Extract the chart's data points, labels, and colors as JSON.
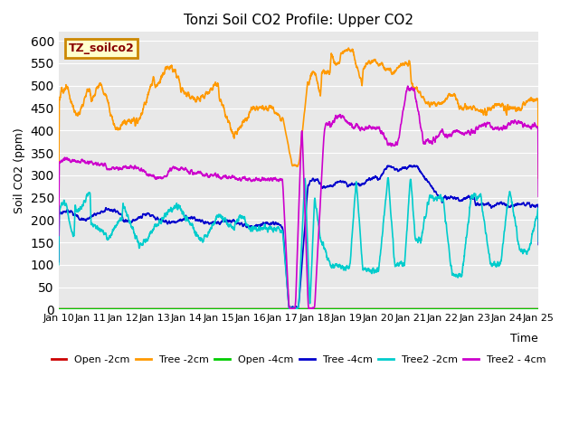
{
  "title": "Tonzi Soil CO2 Profile: Upper CO2",
  "ylabel": "Soil CO2 (ppm)",
  "xlabel": "Time",
  "ylim": [
    0,
    620
  ],
  "yticks": [
    0,
    50,
    100,
    150,
    200,
    250,
    300,
    350,
    400,
    450,
    500,
    550,
    600
  ],
  "xtick_labels": [
    "Jan 10",
    "Jan 11",
    "Jan 12",
    "Jan 13",
    "Jan 14",
    "Jan 15",
    "Jan 16",
    "Jan 17",
    "Jan 18",
    "Jan 19",
    "Jan 20",
    "Jan 21",
    "Jan 22",
    "Jan 23",
    "Jan 24",
    "Jan 25"
  ],
  "plot_bg": "#e8e8e8",
  "legend_box_color": "#ffffcc",
  "legend_box_edge": "#cc8800",
  "legend_label_color": "#880000",
  "legend_label": "TZ_soilco2",
  "series": [
    {
      "name": "Open -2cm",
      "color": "#cc0000",
      "lw": 1.2
    },
    {
      "name": "Tree -2cm",
      "color": "#ff9900",
      "lw": 1.2
    },
    {
      "name": "Open -4cm",
      "color": "#00cc00",
      "lw": 1.5
    },
    {
      "name": "Tree -4cm",
      "color": "#0000cc",
      "lw": 1.2
    },
    {
      "name": "Tree2 -2cm",
      "color": "#00cccc",
      "lw": 1.2
    },
    {
      "name": "Tree2 - 4cm",
      "color": "#cc00cc",
      "lw": 1.2
    }
  ]
}
